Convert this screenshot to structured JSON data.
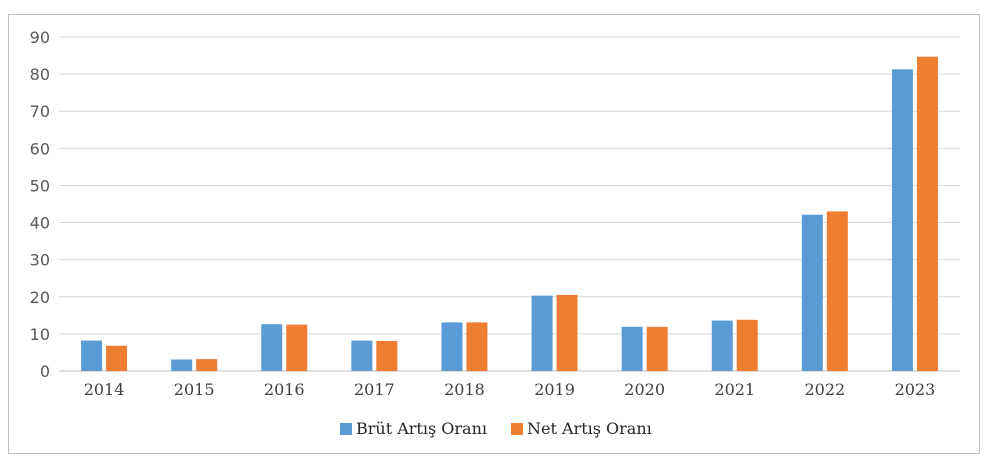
{
  "chart_data": {
    "type": "bar",
    "title": "",
    "xlabel": "",
    "ylabel": "",
    "categories": [
      "2014",
      "2015",
      "2016",
      "2017",
      "2018",
      "2019",
      "2020",
      "2021",
      "2022",
      "2023"
    ],
    "series": [
      {
        "name": "Brüt Artış Oranı",
        "color": "#5b9bd5",
        "values": [
          8.2,
          3.1,
          12.6,
          8.2,
          13.1,
          20.3,
          11.9,
          13.6,
          42.1,
          81.3
        ]
      },
      {
        "name": "Net Artış Oranı",
        "color": "#ed7d31",
        "values": [
          6.8,
          3.2,
          12.5,
          8.1,
          13.1,
          20.5,
          11.9,
          13.8,
          43.0,
          84.7
        ]
      }
    ],
    "ylim": [
      0,
      90
    ],
    "yticks": [
      "0",
      "10",
      "20",
      "30",
      "40",
      "50",
      "60",
      "70",
      "80",
      "90"
    ],
    "grid": true,
    "legend_position": "bottom"
  }
}
